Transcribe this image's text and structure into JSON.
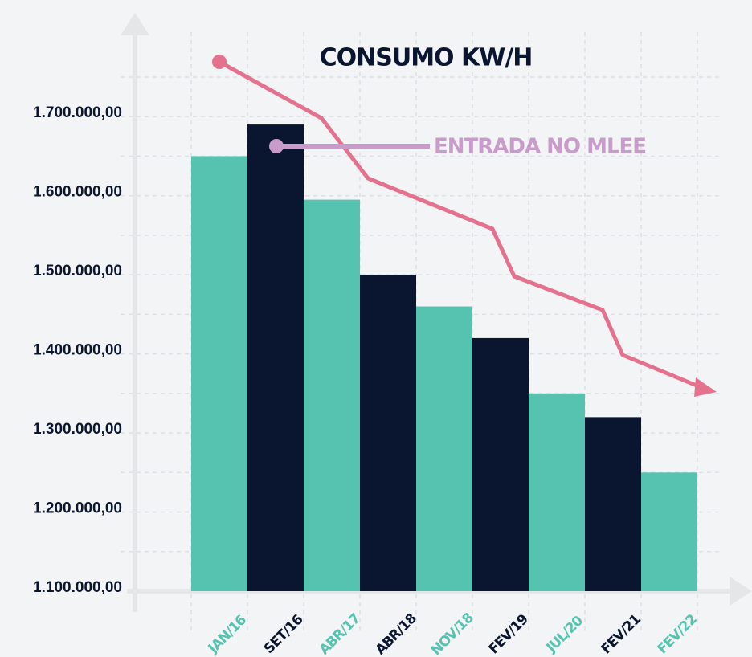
{
  "chart_data": {
    "type": "bar",
    "title": "CONSUMO KW/H",
    "annotation": "ENTRADA NO MLEE",
    "categories": [
      "JAN/16",
      "SET/16",
      "ABR/17",
      "ABR/18",
      "NOV/18",
      "FEV/19",
      "JUL/20",
      "FEV/21",
      "FEV/22"
    ],
    "values": [
      1650000,
      1690000,
      1595000,
      1500000,
      1460000,
      1420000,
      1350000,
      1320000,
      1250000
    ],
    "colors": [
      "#56c2b0",
      "#0a1530",
      "#56c2b0",
      "#0a1530",
      "#56c2b0",
      "#0a1530",
      "#56c2b0",
      "#0a1530",
      "#56c2b0"
    ],
    "ylim": [
      1100000,
      1750000
    ],
    "yticks": [
      {
        "value": 1100000,
        "label": "1.100.000,00"
      },
      {
        "value": 1200000,
        "label": "1.200.000,00"
      },
      {
        "value": 1300000,
        "label": "1.300.000,00"
      },
      {
        "value": 1400000,
        "label": "1.400.000,00"
      },
      {
        "value": 1500000,
        "label": "1.500.000,00"
      },
      {
        "value": 1600000,
        "label": "1.600.000,00"
      },
      {
        "value": 1700000,
        "label": "1.700.000,00"
      }
    ],
    "grid": true
  }
}
